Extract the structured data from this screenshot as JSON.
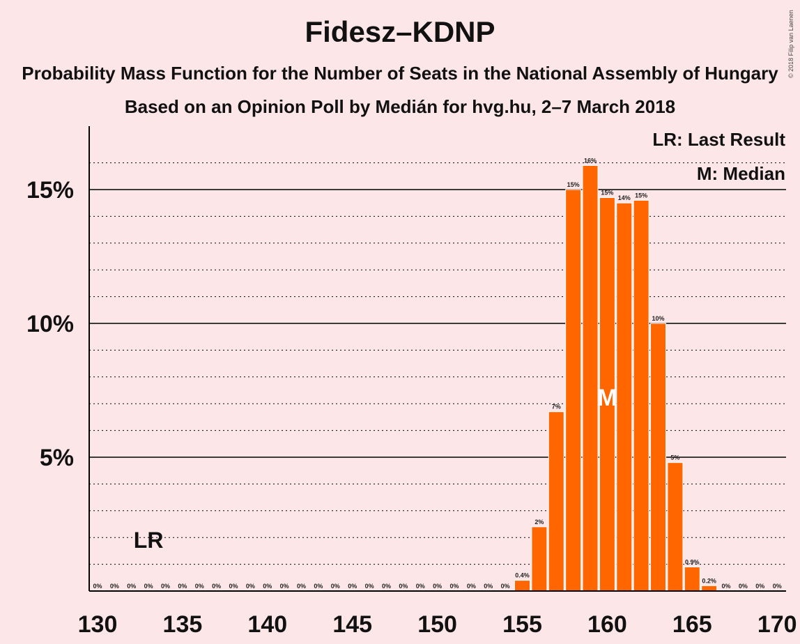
{
  "title": "Fidesz–KDNP",
  "subtitle": "Probability Mass Function for the Number of Seats in the National Assembly of Hungary",
  "subtitle2": "Based on an Opinion Poll by Medián for hvg.hu, 2–7 March 2018",
  "copyright": "© 2018 Filip van Laenen",
  "legend": {
    "lr": "LR: Last Result",
    "m": "M: Median"
  },
  "colors": {
    "background": "#fde6e8",
    "bar": "#ff6600",
    "bar_stroke": "#ffffff",
    "axis": "#000000"
  },
  "chart_data": {
    "type": "bar",
    "x": [
      130,
      131,
      132,
      133,
      134,
      135,
      136,
      137,
      138,
      139,
      140,
      141,
      142,
      143,
      144,
      145,
      146,
      147,
      148,
      149,
      150,
      151,
      152,
      153,
      154,
      155,
      156,
      157,
      158,
      159,
      160,
      161,
      162,
      163,
      164,
      165,
      166,
      167,
      168,
      169,
      170
    ],
    "values": [
      0,
      0,
      0,
      0,
      0,
      0,
      0,
      0,
      0,
      0,
      0,
      0,
      0,
      0,
      0,
      0,
      0,
      0,
      0,
      0,
      0,
      0,
      0,
      0,
      0,
      0.4,
      2.4,
      6.7,
      15.0,
      15.9,
      14.7,
      14.5,
      14.6,
      10.0,
      4.8,
      0.9,
      0.2,
      0,
      0,
      0,
      0
    ],
    "labels": [
      "0%",
      "0%",
      "0%",
      "0%",
      "0%",
      "0%",
      "0%",
      "0%",
      "0%",
      "0%",
      "0%",
      "0%",
      "0%",
      "0%",
      "0%",
      "0%",
      "0%",
      "0%",
      "0%",
      "0%",
      "0%",
      "0%",
      "0%",
      "0%",
      "0%",
      "0.4%",
      "2%",
      "7%",
      "15%",
      "16%",
      "15%",
      "14%",
      "15%",
      "10%",
      "5%",
      "0.9%",
      "0.2%",
      "0%",
      "0%",
      "0%",
      "0%"
    ],
    "xticks": [
      130,
      135,
      140,
      145,
      150,
      155,
      160,
      165,
      170
    ],
    "xtick_labels": [
      "130",
      "135",
      "140",
      "145",
      "150",
      "155",
      "160",
      "165",
      "170"
    ],
    "yticks": [
      5,
      10,
      15
    ],
    "ytick_labels": [
      "5%",
      "10%",
      "15%"
    ],
    "ylim": [
      0,
      17
    ],
    "last_result": {
      "x": 133,
      "label": "LR"
    },
    "median": {
      "x": 160,
      "label": "M"
    }
  }
}
